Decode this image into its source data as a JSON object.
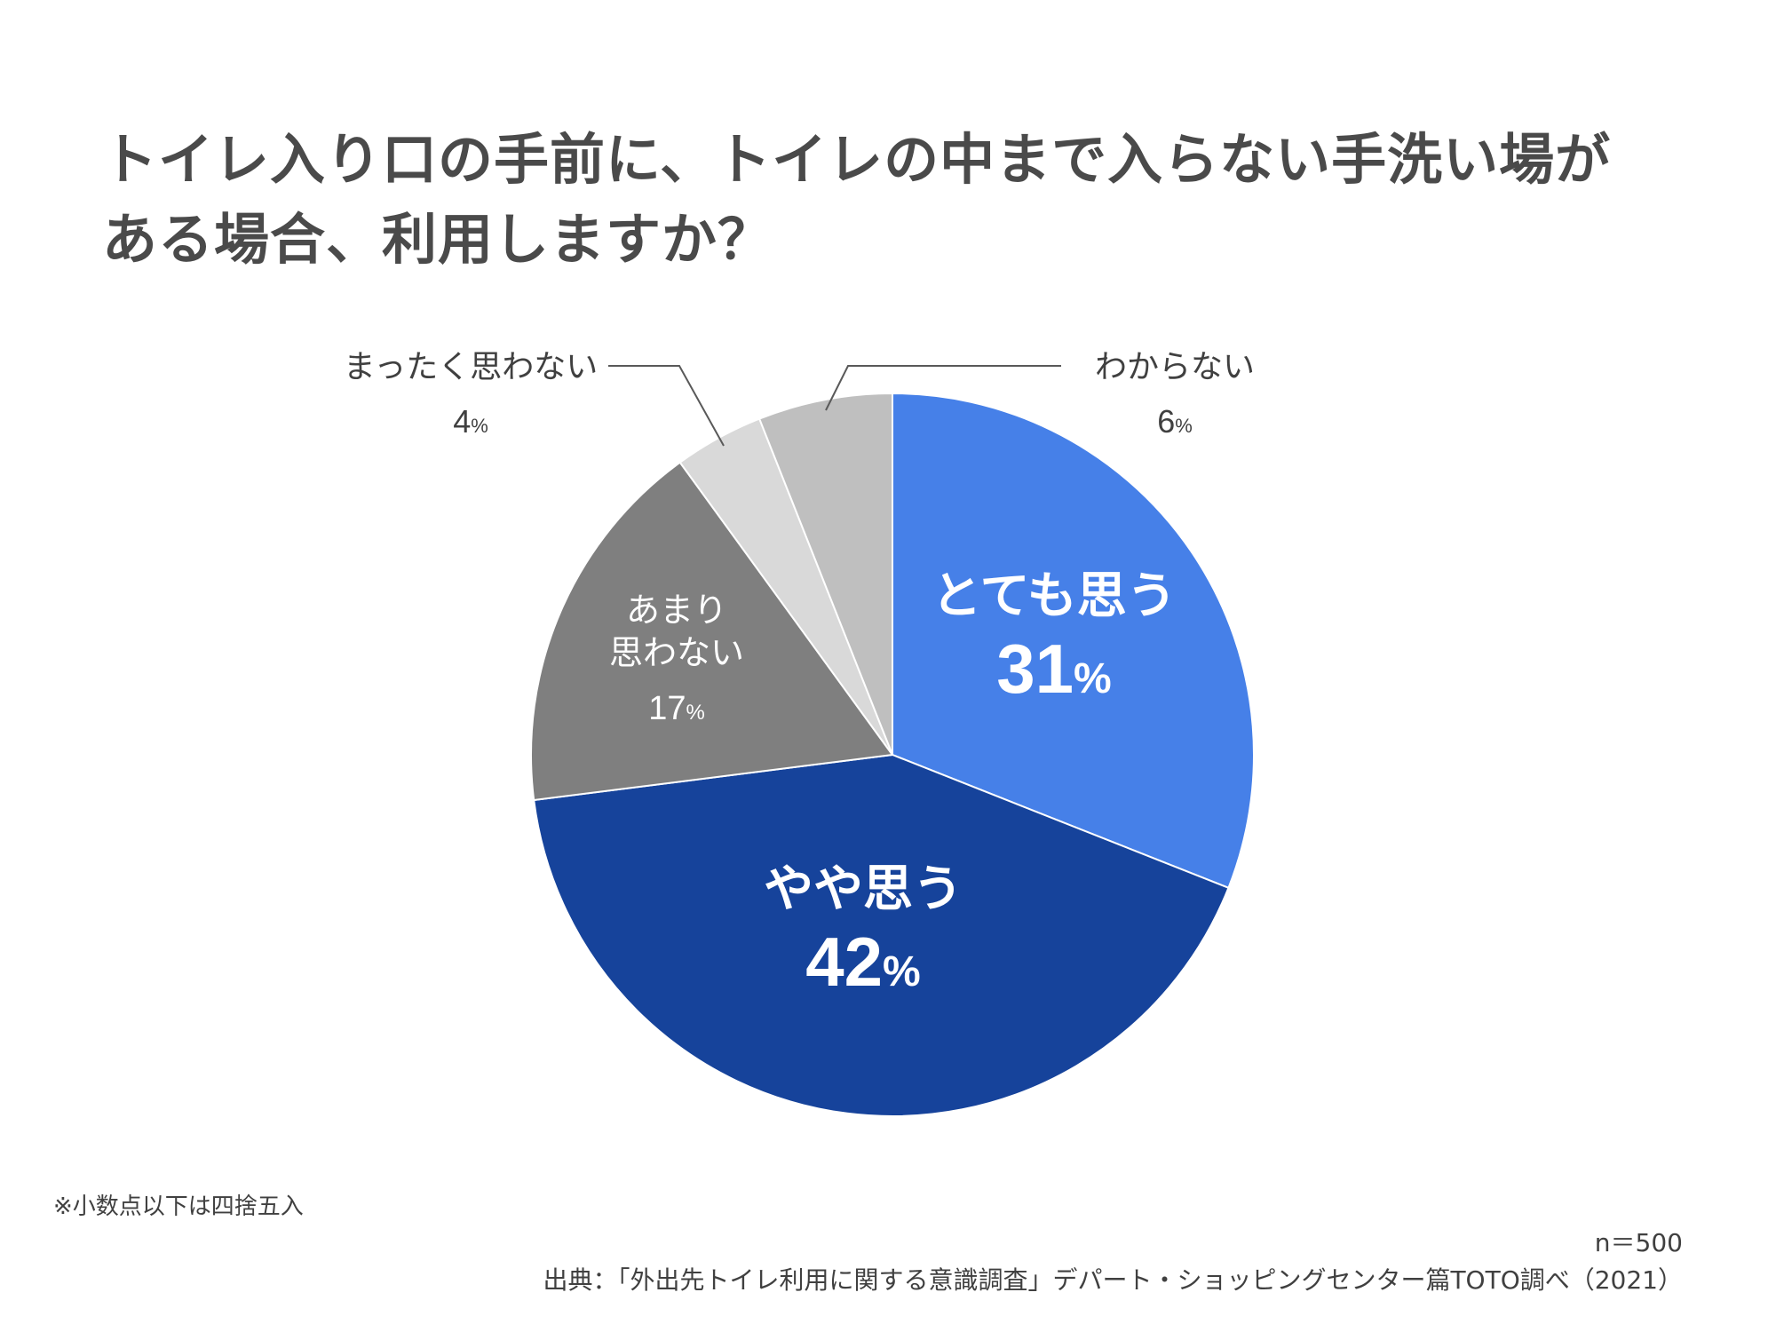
{
  "title": {
    "line1": "トイレ入り口の手前に、トイレの中まで入らない手洗い場が",
    "line2": "ある場合、利用しますか？"
  },
  "chart_data": {
    "type": "pie",
    "title": "トイレ入り口の手前に、トイレの中まで入らない手洗い場がある場合、利用しますか？",
    "unit": "%",
    "slices": [
      {
        "label": "とても思う",
        "value": 31,
        "display": "31",
        "color": "#4680e8",
        "label_color": "#ffffff",
        "emphasis": true
      },
      {
        "label": "やや思う",
        "value": 42,
        "display": "42",
        "color": "#16439b",
        "label_color": "#ffffff",
        "emphasis": true
      },
      {
        "label": "あまり\n思わない",
        "value": 17,
        "display": "17",
        "color": "#7f7f7f",
        "label_color": "#ffffff",
        "emphasis": false
      },
      {
        "label": "まったく思わない",
        "value": 4,
        "display": "4",
        "color": "#d9d9d9",
        "label_color": "#404040",
        "emphasis": false,
        "external": true
      },
      {
        "label": "わからない",
        "value": 6,
        "display": "6",
        "color": "#bfbfbf",
        "label_color": "#404040",
        "emphasis": false,
        "external": true
      }
    ]
  },
  "footnote": "※小数点以下は四捨五入",
  "sample": "n＝500",
  "source": "出典：「外出先トイレ利用に関する意識調査」デパート・ショッピングセンター篇TOTO調べ（2021）"
}
